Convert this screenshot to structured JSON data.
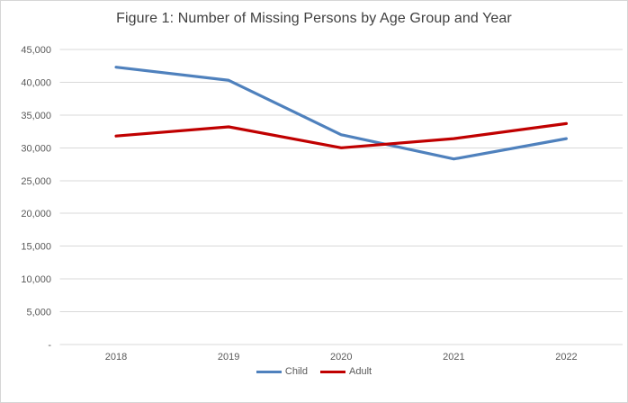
{
  "chart_data": {
    "type": "line",
    "title": "Figure 1: Number of Missing Persons by Age Group and Year",
    "categories": [
      "2018",
      "2019",
      "2020",
      "2021",
      "2022"
    ],
    "series": [
      {
        "name": "Child",
        "color": "#4F81BD",
        "values": [
          42300,
          40300,
          32000,
          28300,
          31400
        ]
      },
      {
        "name": "Adult",
        "color": "#C00000",
        "values": [
          31800,
          33200,
          30000,
          31400,
          33700
        ]
      }
    ],
    "xlabel": "",
    "ylabel": "",
    "ylim": [
      0,
      45000
    ],
    "yticks": [
      0,
      5000,
      10000,
      15000,
      20000,
      25000,
      30000,
      35000,
      40000,
      45000
    ],
    "ytick_labels": [
      "-",
      "5,000",
      "10,000",
      "15,000",
      "20,000",
      "25,000",
      "30,000",
      "35,000",
      "40,000",
      "45,000"
    ],
    "grid": "horizontal",
    "legend_position": "bottom"
  }
}
